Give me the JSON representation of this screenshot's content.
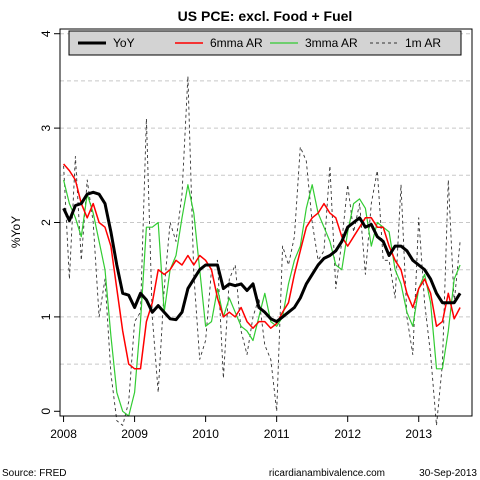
{
  "chart_data": {
    "type": "line",
    "title": "US PCE: excl. Food + Fuel",
    "ylabel": "%YoY",
    "xlabel": "",
    "xlim": [
      2007.95,
      2013.75
    ],
    "ylim": [
      -0.05,
      4.05
    ],
    "yticks": [
      0,
      1,
      2,
      3,
      4
    ],
    "xticks": [
      2008,
      2009,
      2010,
      2011,
      2012,
      2013
    ],
    "hgrid": [
      0.5,
      1.0,
      1.5,
      2.0,
      2.5,
      3.0,
      3.5,
      4.0
    ],
    "grid": true,
    "legend_position": "top",
    "series": [
      {
        "name": "YoY",
        "color": "#000000",
        "width": 3,
        "dash": "",
        "points": [
          [
            2008.0,
            2.15
          ],
          [
            2008.083,
            2.02
          ],
          [
            2008.167,
            2.18
          ],
          [
            2008.25,
            2.2
          ],
          [
            2008.333,
            2.3
          ],
          [
            2008.417,
            2.32
          ],
          [
            2008.5,
            2.3
          ],
          [
            2008.583,
            2.2
          ],
          [
            2008.667,
            1.9
          ],
          [
            2008.75,
            1.55
          ],
          [
            2008.833,
            1.25
          ],
          [
            2008.917,
            1.23
          ],
          [
            2009.0,
            1.1
          ],
          [
            2009.083,
            1.25
          ],
          [
            2009.167,
            1.18
          ],
          [
            2009.25,
            1.05
          ],
          [
            2009.333,
            1.12
          ],
          [
            2009.417,
            1.05
          ],
          [
            2009.5,
            0.98
          ],
          [
            2009.583,
            0.97
          ],
          [
            2009.667,
            1.05
          ],
          [
            2009.75,
            1.3
          ],
          [
            2009.833,
            1.4
          ],
          [
            2009.917,
            1.5
          ],
          [
            2010.0,
            1.55
          ],
          [
            2010.083,
            1.55
          ],
          [
            2010.167,
            1.55
          ],
          [
            2010.25,
            1.3
          ],
          [
            2010.333,
            1.35
          ],
          [
            2010.417,
            1.33
          ],
          [
            2010.5,
            1.35
          ],
          [
            2010.583,
            1.28
          ],
          [
            2010.667,
            1.35
          ],
          [
            2010.75,
            1.1
          ],
          [
            2010.833,
            1.05
          ],
          [
            2010.917,
            0.98
          ],
          [
            2011.0,
            0.95
          ],
          [
            2011.083,
            1.0
          ],
          [
            2011.167,
            1.05
          ],
          [
            2011.25,
            1.1
          ],
          [
            2011.333,
            1.2
          ],
          [
            2011.417,
            1.35
          ],
          [
            2011.5,
            1.45
          ],
          [
            2011.583,
            1.55
          ],
          [
            2011.667,
            1.62
          ],
          [
            2011.75,
            1.65
          ],
          [
            2011.833,
            1.7
          ],
          [
            2011.917,
            1.8
          ],
          [
            2012.0,
            1.95
          ],
          [
            2012.083,
            2.0
          ],
          [
            2012.167,
            2.05
          ],
          [
            2012.25,
            1.95
          ],
          [
            2012.333,
            1.98
          ],
          [
            2012.417,
            1.85
          ],
          [
            2012.5,
            1.8
          ],
          [
            2012.583,
            1.65
          ],
          [
            2012.667,
            1.75
          ],
          [
            2012.75,
            1.75
          ],
          [
            2012.833,
            1.7
          ],
          [
            2012.917,
            1.6
          ],
          [
            2013.0,
            1.55
          ],
          [
            2013.083,
            1.5
          ],
          [
            2013.167,
            1.4
          ],
          [
            2013.25,
            1.25
          ],
          [
            2013.333,
            1.15
          ],
          [
            2013.417,
            1.15
          ],
          [
            2013.5,
            1.15
          ],
          [
            2013.583,
            1.25
          ]
        ]
      },
      {
        "name": "6mma AR",
        "color": "#ff0000",
        "width": 1.5,
        "dash": "",
        "points": [
          [
            2008.0,
            2.62
          ],
          [
            2008.083,
            2.55
          ],
          [
            2008.167,
            2.45
          ],
          [
            2008.25,
            2.2
          ],
          [
            2008.333,
            2.05
          ],
          [
            2008.417,
            2.2
          ],
          [
            2008.5,
            2.0
          ],
          [
            2008.583,
            1.95
          ],
          [
            2008.667,
            1.75
          ],
          [
            2008.75,
            1.3
          ],
          [
            2008.833,
            0.85
          ],
          [
            2008.917,
            0.5
          ],
          [
            2009.0,
            0.45
          ],
          [
            2009.083,
            0.45
          ],
          [
            2009.167,
            0.95
          ],
          [
            2009.25,
            1.15
          ],
          [
            2009.333,
            1.5
          ],
          [
            2009.417,
            1.45
          ],
          [
            2009.5,
            1.5
          ],
          [
            2009.583,
            1.6
          ],
          [
            2009.667,
            1.55
          ],
          [
            2009.75,
            1.65
          ],
          [
            2009.833,
            1.55
          ],
          [
            2009.917,
            1.65
          ],
          [
            2010.0,
            1.6
          ],
          [
            2010.083,
            1.5
          ],
          [
            2010.167,
            1.2
          ],
          [
            2010.25,
            1.0
          ],
          [
            2010.333,
            1.05
          ],
          [
            2010.417,
            1.0
          ],
          [
            2010.5,
            1.1
          ],
          [
            2010.583,
            0.95
          ],
          [
            2010.667,
            0.88
          ],
          [
            2010.75,
            0.95
          ],
          [
            2010.833,
            0.95
          ],
          [
            2010.917,
            0.88
          ],
          [
            2011.0,
            0.93
          ],
          [
            2011.083,
            1.05
          ],
          [
            2011.167,
            1.15
          ],
          [
            2011.25,
            1.45
          ],
          [
            2011.333,
            1.7
          ],
          [
            2011.417,
            1.95
          ],
          [
            2011.5,
            2.05
          ],
          [
            2011.583,
            2.1
          ],
          [
            2011.667,
            2.2
          ],
          [
            2011.75,
            2.1
          ],
          [
            2011.833,
            2.05
          ],
          [
            2011.917,
            1.85
          ],
          [
            2012.0,
            1.75
          ],
          [
            2012.083,
            1.85
          ],
          [
            2012.167,
            1.95
          ],
          [
            2012.25,
            2.05
          ],
          [
            2012.333,
            2.05
          ],
          [
            2012.417,
            1.95
          ],
          [
            2012.5,
            1.95
          ],
          [
            2012.583,
            1.75
          ],
          [
            2012.667,
            1.6
          ],
          [
            2012.75,
            1.5
          ],
          [
            2012.833,
            1.25
          ],
          [
            2012.917,
            1.1
          ],
          [
            2013.0,
            1.3
          ],
          [
            2013.083,
            1.4
          ],
          [
            2013.167,
            1.25
          ],
          [
            2013.25,
            0.9
          ],
          [
            2013.333,
            0.95
          ],
          [
            2013.417,
            1.25
          ],
          [
            2013.5,
            0.98
          ],
          [
            2013.583,
            1.1
          ]
        ]
      },
      {
        "name": "3mma AR",
        "color": "#33cc33",
        "width": 1.2,
        "dash": "",
        "points": [
          [
            2008.0,
            2.45
          ],
          [
            2008.083,
            2.2
          ],
          [
            2008.167,
            2.05
          ],
          [
            2008.25,
            1.85
          ],
          [
            2008.333,
            2.3
          ],
          [
            2008.417,
            2.1
          ],
          [
            2008.5,
            1.8
          ],
          [
            2008.583,
            1.5
          ],
          [
            2008.667,
            0.8
          ],
          [
            2008.75,
            0.2
          ],
          [
            2008.833,
            0.0
          ],
          [
            2008.917,
            -0.05
          ],
          [
            2009.0,
            0.2
          ],
          [
            2009.083,
            0.95
          ],
          [
            2009.167,
            1.95
          ],
          [
            2009.25,
            1.95
          ],
          [
            2009.333,
            2.0
          ],
          [
            2009.417,
            1.05
          ],
          [
            2009.5,
            1.5
          ],
          [
            2009.583,
            1.65
          ],
          [
            2009.667,
            2.05
          ],
          [
            2009.75,
            2.4
          ],
          [
            2009.833,
            2.1
          ],
          [
            2009.917,
            1.5
          ],
          [
            2010.0,
            0.9
          ],
          [
            2010.083,
            0.95
          ],
          [
            2010.167,
            1.3
          ],
          [
            2010.25,
            1.0
          ],
          [
            2010.333,
            1.2
          ],
          [
            2010.417,
            1.05
          ],
          [
            2010.5,
            0.9
          ],
          [
            2010.583,
            0.85
          ],
          [
            2010.667,
            0.75
          ],
          [
            2010.75,
            1.0
          ],
          [
            2010.833,
            1.25
          ],
          [
            2010.917,
            0.95
          ],
          [
            2011.0,
            0.9
          ],
          [
            2011.083,
            1.0
          ],
          [
            2011.167,
            1.35
          ],
          [
            2011.25,
            1.6
          ],
          [
            2011.333,
            1.75
          ],
          [
            2011.417,
            2.15
          ],
          [
            2011.5,
            2.4
          ],
          [
            2011.583,
            2.1
          ],
          [
            2011.667,
            1.95
          ],
          [
            2011.75,
            1.8
          ],
          [
            2011.833,
            1.55
          ],
          [
            2011.917,
            1.5
          ],
          [
            2012.0,
            1.9
          ],
          [
            2012.083,
            2.2
          ],
          [
            2012.167,
            2.25
          ],
          [
            2012.25,
            2.15
          ],
          [
            2012.333,
            1.75
          ],
          [
            2012.417,
            2.0
          ],
          [
            2012.5,
            1.95
          ],
          [
            2012.583,
            1.9
          ],
          [
            2012.667,
            1.5
          ],
          [
            2012.75,
            1.35
          ],
          [
            2012.833,
            1.05
          ],
          [
            2012.917,
            0.9
          ],
          [
            2013.0,
            1.3
          ],
          [
            2013.083,
            1.45
          ],
          [
            2013.167,
            1.15
          ],
          [
            2013.25,
            0.45
          ],
          [
            2013.333,
            0.45
          ],
          [
            2013.417,
            0.85
          ],
          [
            2013.5,
            1.4
          ],
          [
            2013.583,
            1.55
          ]
        ]
      },
      {
        "name": "1m AR",
        "color": "#333333",
        "width": 0.9,
        "dash": "3,3",
        "points": [
          [
            2008.0,
            2.6
          ],
          [
            2008.083,
            1.4
          ],
          [
            2008.167,
            2.7
          ],
          [
            2008.25,
            1.6
          ],
          [
            2008.333,
            2.45
          ],
          [
            2008.417,
            2.0
          ],
          [
            2008.5,
            1.0
          ],
          [
            2008.583,
            1.4
          ],
          [
            2008.667,
            0.4
          ],
          [
            2008.75,
            -0.1
          ],
          [
            2008.833,
            -0.15
          ],
          [
            2008.917,
            0.1
          ],
          [
            2009.0,
            0.95
          ],
          [
            2009.083,
            1.05
          ],
          [
            2009.167,
            3.1
          ],
          [
            2009.25,
            1.0
          ],
          [
            2009.333,
            0.2
          ],
          [
            2009.417,
            1.3
          ],
          [
            2009.5,
            2.0
          ],
          [
            2009.583,
            1.8
          ],
          [
            2009.667,
            2.3
          ],
          [
            2009.75,
            3.55
          ],
          [
            2009.833,
            1.45
          ],
          [
            2009.917,
            0.55
          ],
          [
            2010.0,
            0.75
          ],
          [
            2010.083,
            1.5
          ],
          [
            2010.167,
            1.6
          ],
          [
            2010.25,
            0.35
          ],
          [
            2010.333,
            1.4
          ],
          [
            2010.417,
            1.55
          ],
          [
            2010.5,
            0.85
          ],
          [
            2010.583,
            0.6
          ],
          [
            2010.667,
            1.0
          ],
          [
            2010.75,
            1.2
          ],
          [
            2010.833,
            0.7
          ],
          [
            2010.917,
            0.55
          ],
          [
            2011.0,
            0.0
          ],
          [
            2011.083,
            1.75
          ],
          [
            2011.167,
            1.55
          ],
          [
            2011.25,
            1.85
          ],
          [
            2011.333,
            2.8
          ],
          [
            2011.417,
            2.65
          ],
          [
            2011.5,
            2.0
          ],
          [
            2011.583,
            1.6
          ],
          [
            2011.667,
            1.7
          ],
          [
            2011.75,
            2.6
          ],
          [
            2011.833,
            1.3
          ],
          [
            2011.917,
            1.8
          ],
          [
            2012.0,
            2.4
          ],
          [
            2012.083,
            1.9
          ],
          [
            2012.167,
            2.2
          ],
          [
            2012.25,
            1.45
          ],
          [
            2012.333,
            2.2
          ],
          [
            2012.417,
            2.55
          ],
          [
            2012.5,
            1.6
          ],
          [
            2012.583,
            1.6
          ],
          [
            2012.667,
            1.2
          ],
          [
            2012.75,
            2.4
          ],
          [
            2012.833,
            1.0
          ],
          [
            2012.917,
            0.6
          ],
          [
            2013.0,
            2.05
          ],
          [
            2013.083,
            1.15
          ],
          [
            2013.167,
            0.6
          ],
          [
            2013.25,
            -0.15
          ],
          [
            2013.333,
            0.5
          ],
          [
            2013.417,
            2.45
          ],
          [
            2013.5,
            1.15
          ],
          [
            2013.583,
            1.8
          ]
        ]
      }
    ]
  },
  "footer": {
    "source": "Source: FRED",
    "credit": "ricardianambivalence.com",
    "date": "30-Sep-2013"
  }
}
